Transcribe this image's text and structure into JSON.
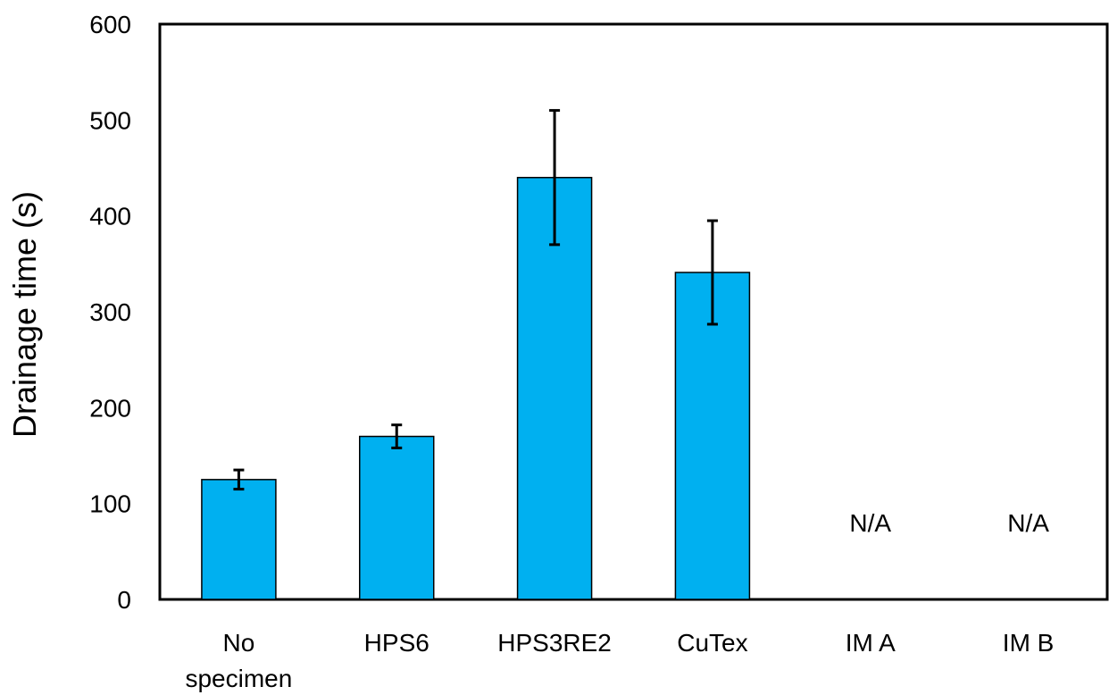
{
  "chart_data": {
    "type": "bar",
    "ylabel": "Drainage time (s)",
    "xlabel": "",
    "ylim": [
      0,
      600
    ],
    "yticks": [
      0,
      100,
      200,
      300,
      400,
      500,
      600
    ],
    "grid": false,
    "legend": "none",
    "bar_color": "#00B0F0",
    "categories": [
      {
        "label_lines": [
          "No",
          "specimen"
        ]
      },
      {
        "label_lines": [
          "HPS6"
        ]
      },
      {
        "label_lines": [
          "HPS3RE2"
        ]
      },
      {
        "label_lines": [
          "CuTex"
        ]
      },
      {
        "label_lines": [
          "IM A"
        ]
      },
      {
        "label_lines": [
          "IM B"
        ]
      }
    ],
    "values": [
      125,
      170,
      440,
      341,
      null,
      null
    ],
    "errors": [
      10,
      12,
      70,
      54,
      null,
      null
    ],
    "na_labels": [
      "",
      "",
      "",
      "",
      "N/A",
      "N/A"
    ],
    "na_value": 80
  }
}
